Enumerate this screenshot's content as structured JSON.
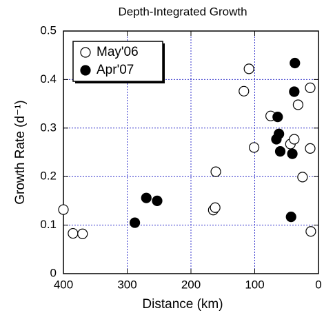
{
  "chart_data": {
    "type": "scatter",
    "title": "Depth-Integrated Growth",
    "xlabel": "Distance (km)",
    "ylabel": "Growth Rate (d⁻¹)",
    "xlim": [
      400,
      0
    ],
    "xticks": [
      400,
      300,
      200,
      100,
      0
    ],
    "ylim": [
      0,
      0.5
    ],
    "yticks": [
      0,
      0.1,
      0.2,
      0.3,
      0.4,
      0.5
    ],
    "grid": true,
    "grid_color": "#3333cc",
    "legend": "upper left",
    "series": [
      {
        "name": "May'06",
        "color": "#000000",
        "filled": false,
        "x": [
          400,
          385,
          370,
          165,
          162,
          161,
          117,
          109,
          101,
          75,
          44,
          38,
          32,
          25,
          13,
          13,
          12
        ],
        "values": [
          0.132,
          0.083,
          0.082,
          0.131,
          0.136,
          0.21,
          0.376,
          0.422,
          0.26,
          0.325,
          0.267,
          0.277,
          0.348,
          0.199,
          0.383,
          0.258,
          0.087
        ]
      },
      {
        "name": "Apr'07",
        "color": "#000000",
        "filled": true,
        "x": [
          288,
          270,
          253,
          64,
          62,
          60,
          66,
          41,
          38,
          37,
          43
        ],
        "values": [
          0.105,
          0.156,
          0.15,
          0.323,
          0.288,
          0.252,
          0.277,
          0.247,
          0.375,
          0.434,
          0.117
        ]
      }
    ]
  }
}
